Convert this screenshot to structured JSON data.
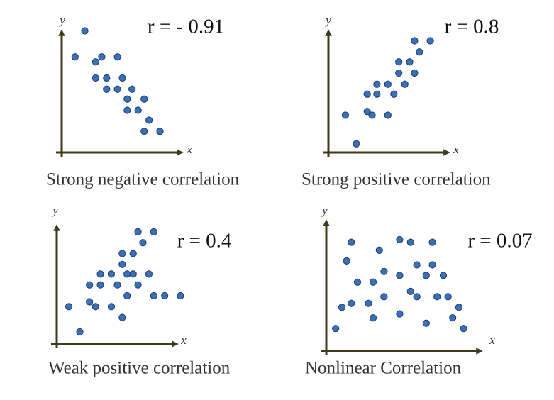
{
  "chart_data": [
    {
      "type": "scatter",
      "title": "Strong negative correlation",
      "annotation": "r = - 0.91",
      "x_label": "x",
      "y_label": "y",
      "color": "#3b6fb6",
      "xlim": [
        0,
        10
      ],
      "ylim": [
        0,
        10
      ],
      "x": [
        1.9,
        1.1,
        2.8,
        3.3,
        4.6,
        2.8,
        3.7,
        5.0,
        3.7,
        4.6,
        5.8,
        5.4,
        6.8,
        5.4,
        6.3,
        7.2,
        6.8,
        8.1
      ],
      "y": [
        9.8,
        7.7,
        7.3,
        7.7,
        7.7,
        6.0,
        6.0,
        6.0,
        5.1,
        5.1,
        5.1,
        4.3,
        4.3,
        3.4,
        3.4,
        2.6,
        1.7,
        1.7
      ]
    },
    {
      "type": "scatter",
      "title": "Strong positive correlation",
      "annotation": "r = 0.8",
      "x_label": "x",
      "y_label": "y",
      "color": "#3b6fb6",
      "xlim": [
        0,
        10
      ],
      "ylim": [
        0,
        10
      ],
      "x": [
        1.4,
        2.3,
        3.2,
        3.2,
        3.6,
        4.0,
        4.0,
        4.9,
        4.9,
        5.4,
        5.8,
        5.8,
        6.3,
        6.7,
        7.1,
        7.1,
        7.5,
        8.4
      ],
      "y": [
        3.0,
        0.7,
        4.7,
        3.3,
        3.0,
        4.7,
        5.5,
        5.5,
        3.0,
        4.7,
        6.4,
        7.3,
        5.5,
        7.3,
        6.4,
        9.0,
        8.1,
        9.0
      ]
    },
    {
      "type": "scatter",
      "title": "Weak positive correlation",
      "annotation": "r = 0.4",
      "x_label": "x",
      "y_label": "y",
      "color": "#3b6fb6",
      "xlim": [
        0,
        10
      ],
      "ylim": [
        0,
        10
      ],
      "x": [
        1.0,
        1.9,
        2.7,
        2.7,
        3.2,
        3.6,
        3.6,
        4.5,
        4.5,
        5.0,
        5.4,
        5.4,
        5.4,
        5.8,
        5.8,
        6.3,
        6.3,
        6.7,
        6.7,
        7.1,
        7.6,
        8.0,
        8.0,
        8.9,
        10.2
      ],
      "y": [
        3.1,
        1.0,
        4.9,
        3.5,
        3.1,
        5.8,
        4.9,
        5.8,
        3.1,
        4.9,
        6.6,
        7.5,
        2.2,
        5.8,
        4.0,
        7.5,
        5.8,
        4.9,
        9.3,
        8.4,
        5.8,
        9.3,
        4.0,
        4.0,
        4.0
      ]
    },
    {
      "type": "scatter",
      "title": "Nonlinear Correlation",
      "annotation": "r = 0.07",
      "x_label": "x",
      "y_label": "y",
      "color": "#3b6fb6",
      "xlim": [
        0,
        10
      ],
      "ylim": [
        0,
        10
      ],
      "x": [
        0.6,
        1.0,
        1.3,
        1.6,
        1.6,
        2.0,
        2.7,
        3.0,
        3.0,
        3.4,
        3.7,
        3.7,
        4.7,
        4.7,
        4.7,
        5.4,
        5.4,
        5.8,
        5.8,
        6.4,
        6.4,
        6.8,
        6.8,
        7.1,
        7.5,
        7.8,
        8.1,
        8.5,
        8.8
      ],
      "y": [
        1.7,
        3.3,
        6.8,
        8.2,
        3.6,
        5.2,
        3.6,
        5.2,
        2.5,
        7.6,
        6.0,
        4.1,
        8.4,
        2.8,
        5.7,
        8.2,
        4.5,
        6.5,
        4.1,
        5.7,
        2.1,
        8.2,
        6.5,
        4.1,
        5.7,
        4.1,
        2.5,
        3.3,
        1.7
      ]
    }
  ]
}
